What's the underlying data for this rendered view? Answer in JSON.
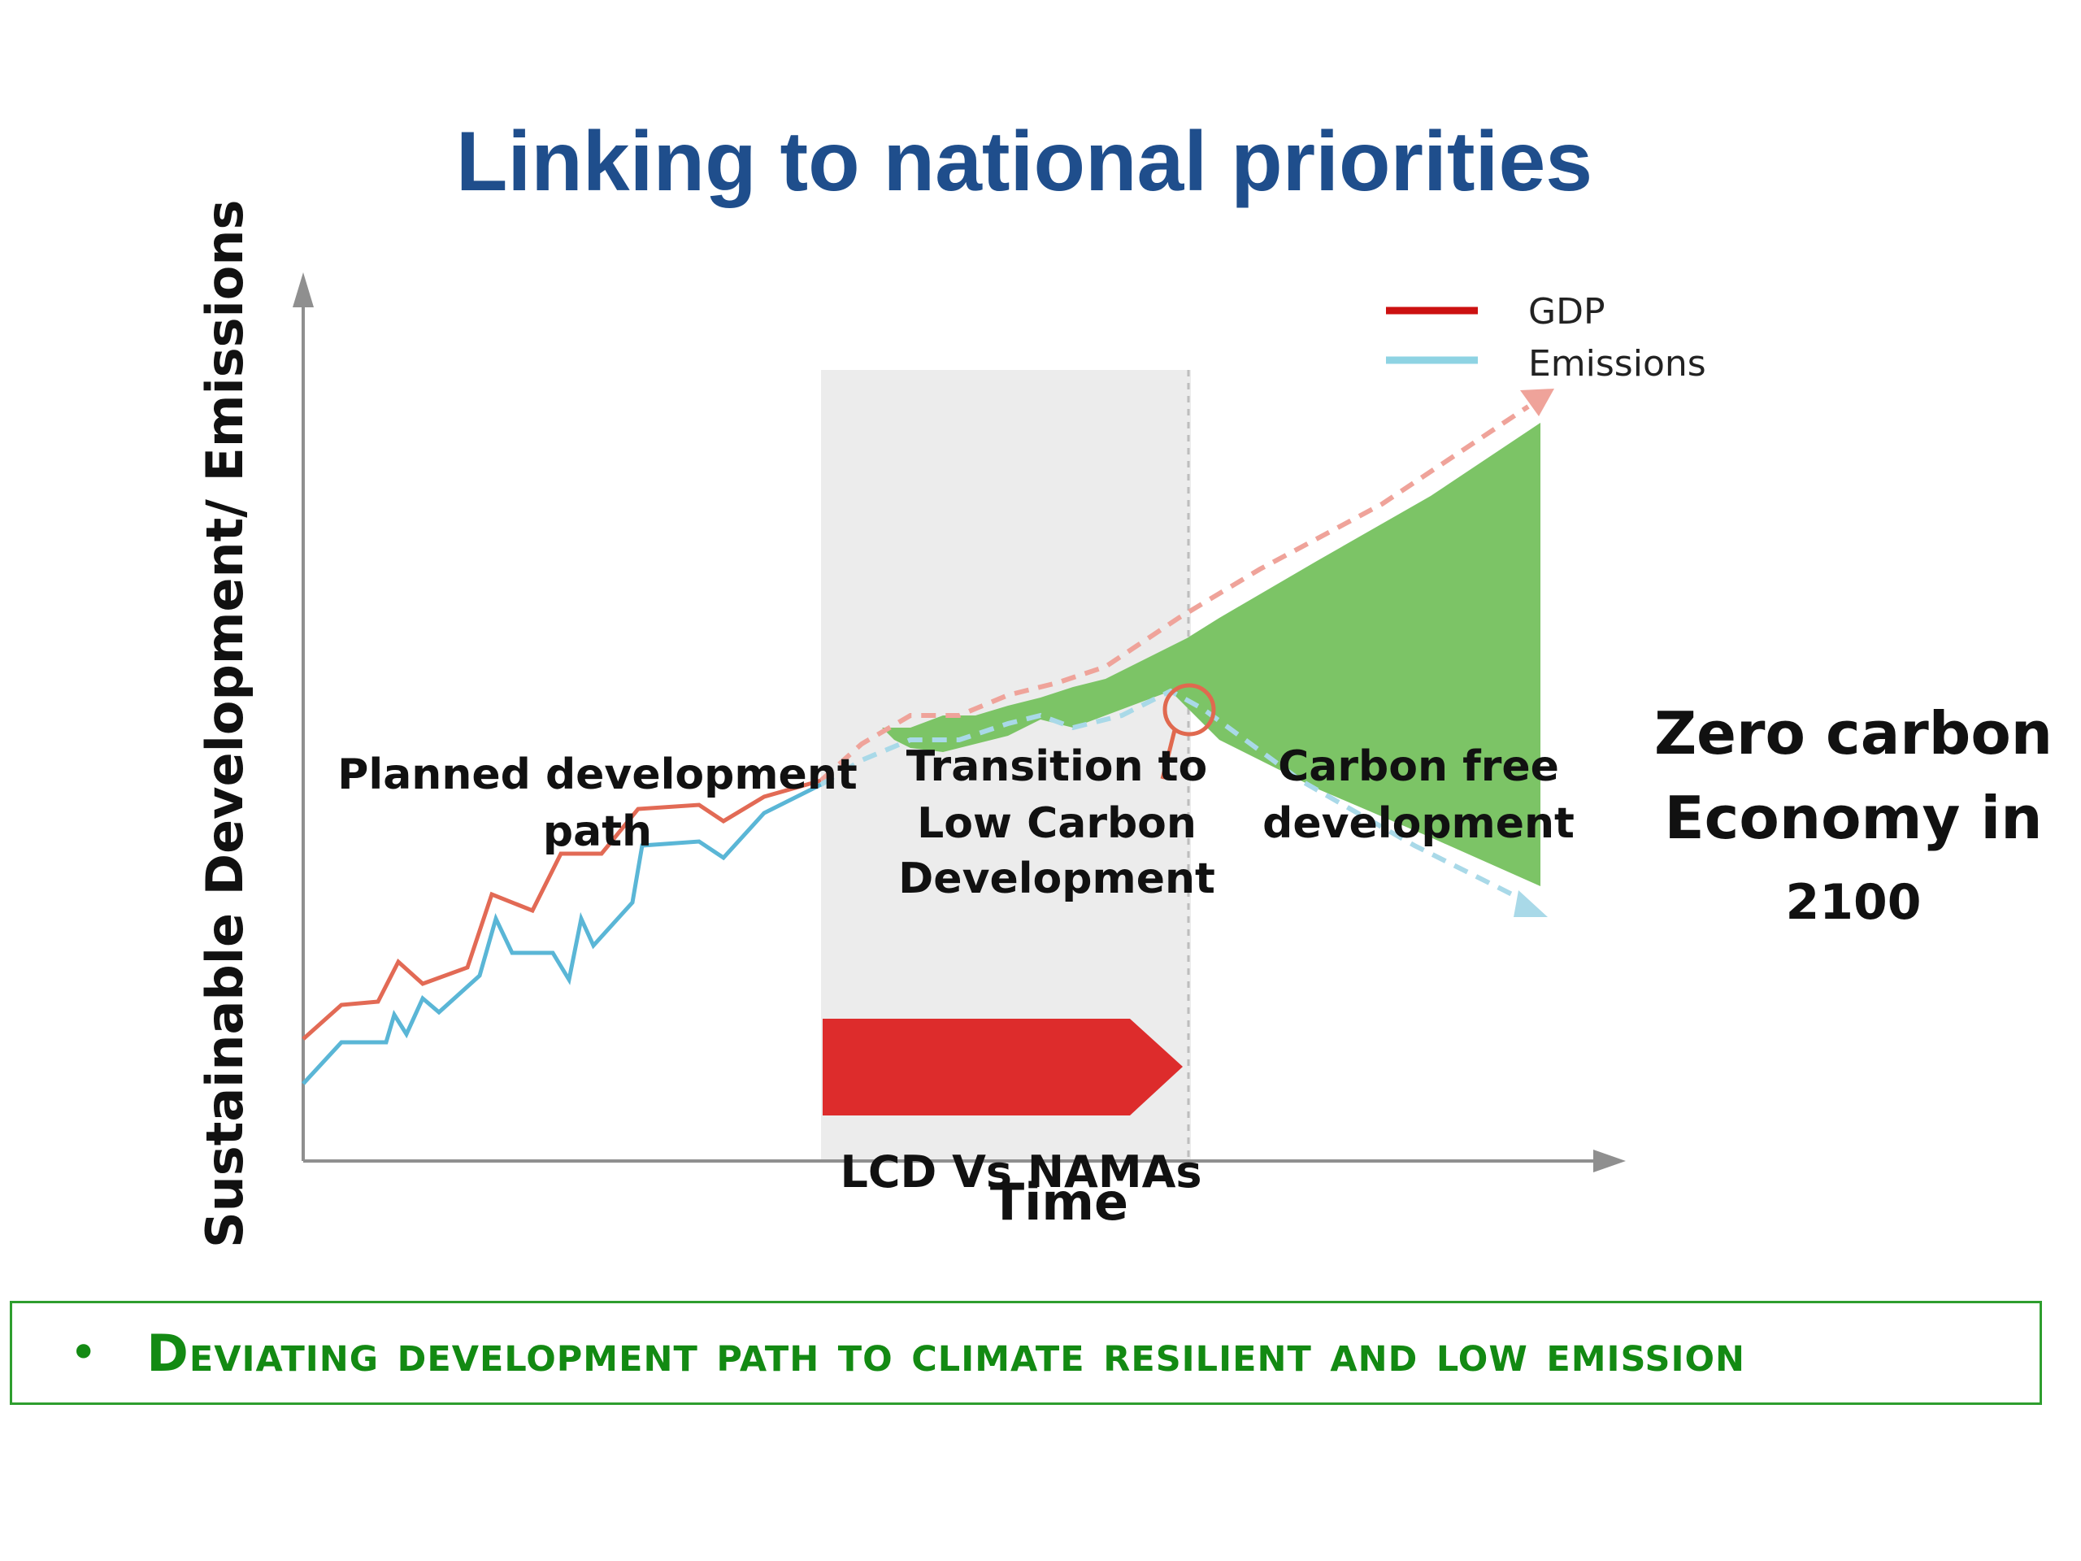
{
  "title": "Linking to national priorities",
  "legend": [
    {
      "label": "GDP",
      "color": "#cc1111"
    },
    {
      "label": "Emissions",
      "color": "#8ed3e3"
    }
  ],
  "axes": {
    "y_label": "Sustainable Development/ Emissions",
    "x_label": "Time"
  },
  "annotations": {
    "planned_line1": "Planned development",
    "planned_line2": "path",
    "transition_line1": "Transition to",
    "transition_line2": "Low Carbon",
    "transition_line3": "Development",
    "carbon_free_line1": "Carbon free",
    "carbon_free_line2": "development",
    "lcd_vs_namas": "LCD  Vs  NAMAs"
  },
  "zero_carbon": {
    "line1": "Zero carbon",
    "line2": "Economy in",
    "line3": "2100"
  },
  "bullet": {
    "text": "Deviating development path to climate resilient and low emission"
  },
  "colors": {
    "title": "#1f4e8c",
    "gdp": "#cc1111",
    "emissions": "#8ed3e3",
    "gap_fill": "#7cc466",
    "transition_band": "#ececec",
    "arrow_block": "#dd2c2c",
    "bullet_green": "#138a13"
  }
}
